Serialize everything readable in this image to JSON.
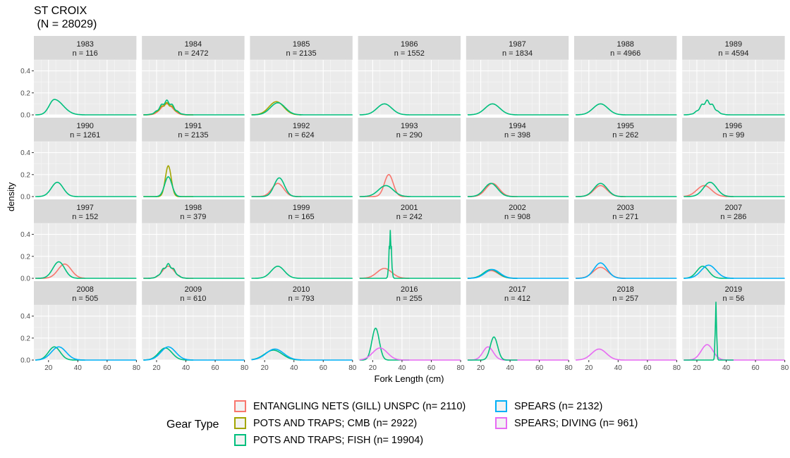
{
  "chart_data": {
    "type": "density",
    "title": "ST CROIX\n (N = 28029)",
    "xlabel": "Fork Length (cm)",
    "ylabel": "density",
    "xlim": [
      10,
      80
    ],
    "ylim": [
      0,
      0.5
    ],
    "xticks": [
      20,
      40,
      60,
      80
    ],
    "yticks": [
      0.0,
      0.2,
      0.4
    ],
    "ytick_labels": [
      "0.0",
      "0.2",
      "0.4"
    ],
    "legend_title": "Gear Type",
    "legend": [
      {
        "name": "ENTANGLING NETS (GILL) UNSPC (n= 2110)",
        "color": "#F8766D"
      },
      {
        "name": "POTS AND TRAPS; CMB (n= 2922)",
        "color": "#A3A500"
      },
      {
        "name": "POTS AND TRAPS; FISH (n= 19904)",
        "color": "#00BF7D"
      },
      {
        "name": "SPEARS (n= 2132)",
        "color": "#00B0F6"
      },
      {
        "name": "SPEARS; DIVING (n= 961)",
        "color": "#E76BF3"
      }
    ],
    "panels": [
      {
        "year": "1983",
        "n": "n = 116",
        "series": [
          {
            "g": 2,
            "m": 24,
            "s": 3.5,
            "h": 0.14,
            "sk": 1,
            "x1": 80
          }
        ]
      },
      {
        "year": "1984",
        "n": "n = 2472",
        "series": [
          {
            "g": 0,
            "m": 27,
            "s": 4,
            "h": 0.1,
            "x1": 45
          },
          {
            "g": 1,
            "m": 27,
            "s": 4.5,
            "h": 0.1,
            "bi": 1,
            "x1": 45
          },
          {
            "g": 2,
            "m": 27,
            "s": 4.5,
            "h": 0.12,
            "bi": 1,
            "x1": 80
          }
        ]
      },
      {
        "year": "1985",
        "n": "n = 2135",
        "series": [
          {
            "g": 1,
            "m": 28,
            "s": 5,
            "h": 0.12,
            "x1": 45
          },
          {
            "g": 2,
            "m": 29,
            "s": 5,
            "h": 0.11,
            "x1": 80
          }
        ]
      },
      {
        "year": "1986",
        "n": "n = 1552",
        "series": [
          {
            "g": 2,
            "m": 28,
            "s": 5,
            "h": 0.1,
            "x1": 80
          }
        ]
      },
      {
        "year": "1987",
        "n": "n = 1834",
        "series": [
          {
            "g": 2,
            "m": 28,
            "s": 5,
            "h": 0.1,
            "x1": 80
          }
        ]
      },
      {
        "year": "1988",
        "n": "n = 4966",
        "series": [
          {
            "g": 2,
            "m": 28,
            "s": 5,
            "h": 0.1,
            "x1": 80
          }
        ]
      },
      {
        "year": "1989",
        "n": "n = 4594",
        "series": [
          {
            "g": 2,
            "m": 27,
            "s": 4.5,
            "h": 0.12,
            "bi": 1,
            "x1": 80
          }
        ]
      },
      {
        "year": "1990",
        "n": "n = 1261",
        "series": [
          {
            "g": 2,
            "m": 26,
            "s": 4,
            "h": 0.13,
            "x1": 80
          }
        ]
      },
      {
        "year": "1991",
        "n": "n = 2135",
        "series": [
          {
            "g": 1,
            "m": 28,
            "s": 2,
            "h": 0.28,
            "x1": 45
          },
          {
            "g": 2,
            "m": 28,
            "s": 2.5,
            "h": 0.18,
            "x1": 80
          }
        ]
      },
      {
        "year": "1992",
        "n": "n = 624",
        "series": [
          {
            "g": 0,
            "m": 29,
            "s": 4,
            "h": 0.12,
            "x1": 45
          },
          {
            "g": 2,
            "m": 30,
            "s": 3.5,
            "h": 0.17,
            "x1": 80
          }
        ]
      },
      {
        "year": "1993",
        "n": "n = 290",
        "series": [
          {
            "g": 0,
            "m": 31,
            "s": 3,
            "h": 0.2,
            "x1": 45
          },
          {
            "g": 2,
            "m": 29,
            "s": 5,
            "h": 0.1,
            "x1": 80
          }
        ]
      },
      {
        "year": "1994",
        "n": "n = 398",
        "series": [
          {
            "g": 0,
            "m": 28,
            "s": 4.5,
            "h": 0.12,
            "x1": 45
          },
          {
            "g": 2,
            "m": 27,
            "s": 4.5,
            "h": 0.12,
            "x1": 80
          }
        ]
      },
      {
        "year": "1995",
        "n": "n = 262",
        "series": [
          {
            "g": 0,
            "m": 28,
            "s": 4.5,
            "h": 0.1,
            "x1": 45
          },
          {
            "g": 2,
            "m": 28,
            "s": 4.5,
            "h": 0.12,
            "x1": 80
          }
        ]
      },
      {
        "year": "1996",
        "n": "n = 99",
        "series": [
          {
            "g": 0,
            "m": 25,
            "s": 5,
            "h": 0.1,
            "x1": 45
          },
          {
            "g": 2,
            "m": 29,
            "s": 4.5,
            "h": 0.13,
            "x1": 80
          }
        ]
      },
      {
        "year": "1997",
        "n": "n = 152",
        "series": [
          {
            "g": 0,
            "m": 31,
            "s": 4.5,
            "h": 0.13,
            "x1": 45
          },
          {
            "g": 2,
            "m": 27,
            "s": 4,
            "h": 0.15,
            "x1": 80
          }
        ]
      },
      {
        "year": "1998",
        "n": "n = 379",
        "series": [
          {
            "g": 0,
            "m": 28,
            "s": 4,
            "h": 0.11,
            "x1": 45
          },
          {
            "g": 2,
            "m": 28,
            "s": 4,
            "h": 0.12,
            "bi": 1,
            "x1": 80
          }
        ]
      },
      {
        "year": "1999",
        "n": "n = 165",
        "series": [
          {
            "g": 2,
            "m": 29,
            "s": 4.5,
            "h": 0.11,
            "x1": 80
          }
        ]
      },
      {
        "year": "2001",
        "n": "n = 242",
        "series": [
          {
            "g": 0,
            "m": 28,
            "s": 5,
            "h": 0.09,
            "x1": 45
          },
          {
            "g": 2,
            "m": 32,
            "s": 0.8,
            "h": 0.44,
            "spk": 1,
            "x1": 80
          }
        ]
      },
      {
        "year": "2002",
        "n": "n = 908",
        "series": [
          {
            "g": 0,
            "m": 27,
            "s": 5,
            "h": 0.07,
            "x1": 45
          },
          {
            "g": 2,
            "m": 27,
            "s": 5,
            "h": 0.08,
            "x1": 45
          },
          {
            "g": 3,
            "m": 28,
            "s": 5,
            "h": 0.08,
            "x1": 80
          }
        ]
      },
      {
        "year": "2003",
        "n": "n = 271",
        "series": [
          {
            "g": 0,
            "m": 28,
            "s": 5,
            "h": 0.1,
            "x1": 45
          },
          {
            "g": 3,
            "m": 28,
            "s": 4.5,
            "h": 0.14,
            "x1": 80
          }
        ]
      },
      {
        "year": "2007",
        "n": "n = 286",
        "series": [
          {
            "g": 2,
            "m": 24,
            "s": 4,
            "h": 0.11,
            "x1": 45
          },
          {
            "g": 3,
            "m": 28,
            "s": 5,
            "h": 0.12,
            "x1": 80
          }
        ]
      },
      {
        "year": "2008",
        "n": "n = 505",
        "series": [
          {
            "g": 2,
            "m": 24,
            "s": 4,
            "h": 0.12,
            "x1": 45
          },
          {
            "g": 3,
            "m": 27,
            "s": 5,
            "h": 0.12,
            "x1": 80
          }
        ]
      },
      {
        "year": "2009",
        "n": "n = 610",
        "series": [
          {
            "g": 2,
            "m": 26,
            "s": 4.5,
            "h": 0.11,
            "x1": 45
          },
          {
            "g": 3,
            "m": 28,
            "s": 5,
            "h": 0.12,
            "x1": 80
          }
        ]
      },
      {
        "year": "2010",
        "n": "n = 793",
        "series": [
          {
            "g": 2,
            "m": 26,
            "s": 6,
            "h": 0.09,
            "x1": 45
          },
          {
            "g": 3,
            "m": 27,
            "s": 6,
            "h": 0.1,
            "x1": 80
          }
        ]
      },
      {
        "year": "2016",
        "n": "n = 255",
        "series": [
          {
            "g": 2,
            "m": 22,
            "s": 2.5,
            "h": 0.29,
            "x1": 45
          },
          {
            "g": 4,
            "m": 25,
            "s": 5,
            "h": 0.11,
            "x1": 80
          }
        ]
      },
      {
        "year": "2017",
        "n": "n = 412",
        "series": [
          {
            "g": 4,
            "m": 25,
            "s": 3.5,
            "h": 0.12,
            "x1": 80
          },
          {
            "g": 2,
            "m": 29,
            "s": 2.5,
            "h": 0.21,
            "x1": 45
          }
        ]
      },
      {
        "year": "2018",
        "n": "n = 257",
        "series": [
          {
            "g": 4,
            "m": 27,
            "s": 5,
            "h": 0.1,
            "x1": 80
          }
        ]
      },
      {
        "year": "2019",
        "n": "n = 56",
        "series": [
          {
            "g": 4,
            "m": 27,
            "s": 4,
            "h": 0.14,
            "x1": 80
          },
          {
            "g": 2,
            "m": 33,
            "s": 0.5,
            "h": 0.53,
            "spk": 1,
            "x1": 45
          }
        ]
      }
    ]
  }
}
